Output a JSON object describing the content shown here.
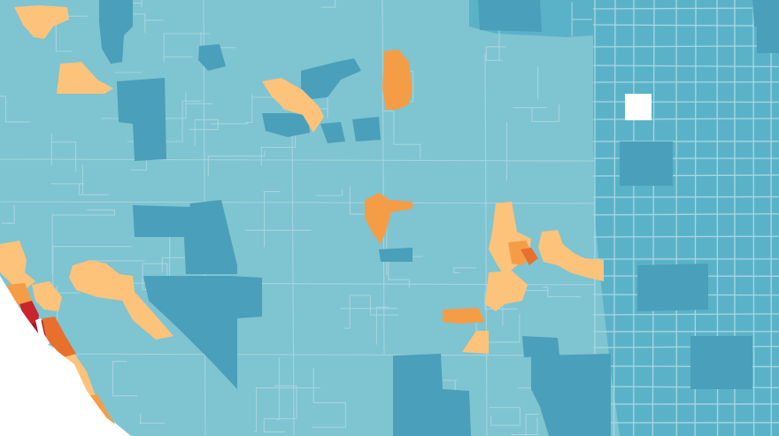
{
  "map": {
    "kind": "choropleth",
    "legend_shown": false,
    "labels_shown": false,
    "palette": {
      "light_blue": "#7fc4d1",
      "mid_blue": "#5ab2c8",
      "dark_blue": "#4a9fba",
      "light_orange": "#fdc37a",
      "orange": "#f59d46",
      "dark_orange": "#e8702c",
      "red": "#c8252d",
      "dark_red": "#9e1a2a",
      "no_data": "#ffffff",
      "boundary": "#b5dde6",
      "ocean": "#ffffff"
    }
  }
}
